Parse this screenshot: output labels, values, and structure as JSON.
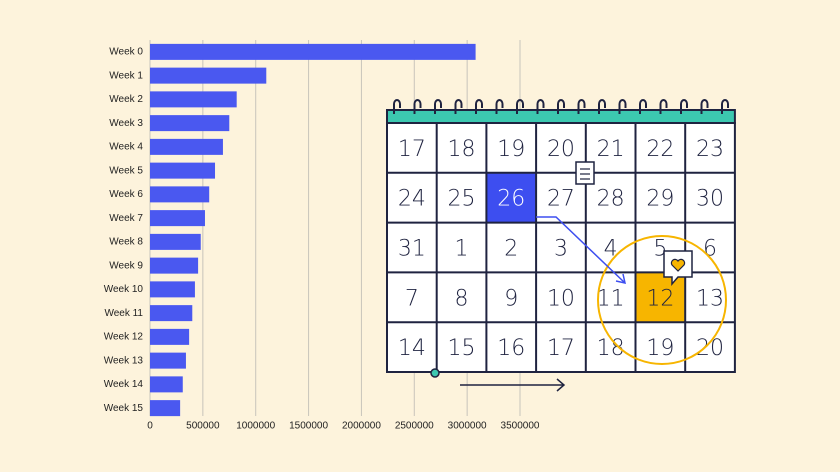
{
  "chart_data": {
    "type": "barh",
    "categories": [
      "Week 0",
      "Week 1",
      "Week 2",
      "Week 3",
      "Week 4",
      "Week 5",
      "Week 6",
      "Week 7",
      "Week 8",
      "Week 9",
      "Week 10",
      "Week 11",
      "Week 12",
      "Week 13",
      "Week 14",
      "Week 15"
    ],
    "values": [
      3080000,
      1100000,
      820000,
      750000,
      690000,
      615000,
      560000,
      520000,
      480000,
      455000,
      425000,
      400000,
      370000,
      340000,
      310000,
      285000
    ],
    "color": "#4a58f0",
    "xlim": [
      0,
      3500000
    ],
    "xticks": [
      0,
      500000,
      1000000,
      1500000,
      2000000,
      2500000,
      3000000,
      3500000
    ],
    "grid": true
  },
  "calendar": {
    "rows": [
      [
        17,
        18,
        19,
        20,
        21,
        22,
        23
      ],
      [
        24,
        25,
        26,
        27,
        28,
        29,
        30
      ],
      [
        31,
        1,
        2,
        3,
        4,
        5,
        6
      ],
      [
        7,
        8,
        9,
        10,
        11,
        12,
        13
      ],
      [
        14,
        15,
        16,
        17,
        18,
        19,
        20
      ]
    ]
  }
}
